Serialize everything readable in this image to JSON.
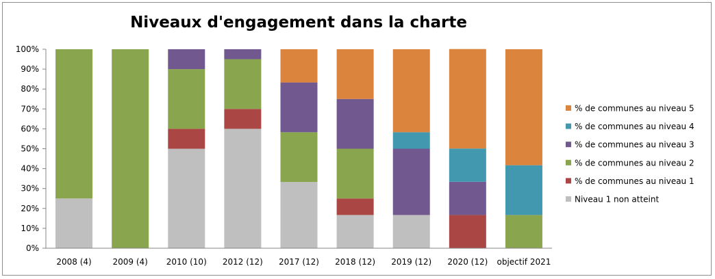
{
  "chart_data": {
    "type": "bar",
    "stacked": true,
    "title": "Niveaux d'engagement dans la charte",
    "categories": [
      "2008 (4)",
      "2009 (4)",
      "2010 (10)",
      "2012 (12)",
      "2017 (12)",
      "2018 (12)",
      "2019 (12)",
      "2020 (12)",
      "objectif 2021"
    ],
    "series": [
      {
        "name": "Niveau 1 non atteint",
        "color": "#bfbfbf",
        "values": [
          25,
          0,
          50,
          60,
          33.3,
          16.7,
          16.7,
          0,
          0
        ]
      },
      {
        "name": "% de communes au niveau 1",
        "color": "#aa4643",
        "values": [
          0,
          0,
          10,
          10,
          0,
          8.3,
          0,
          16.7,
          0
        ]
      },
      {
        "name": "% de communes au niveau 2",
        "color": "#89a54e",
        "values": [
          75,
          100,
          30,
          25,
          25,
          25,
          0,
          0,
          16.7
        ]
      },
      {
        "name": "% de communes au niveau 3",
        "color": "#71588f",
        "values": [
          0,
          0,
          10,
          5,
          25,
          25,
          33.3,
          16.7,
          0
        ]
      },
      {
        "name": "% de communes au niveau 4",
        "color": "#4198af",
        "values": [
          0,
          0,
          0,
          0,
          0,
          0,
          8.3,
          16.7,
          25
        ]
      },
      {
        "name": "% de communes au niveau 5",
        "color": "#db843d",
        "values": [
          0,
          0,
          0,
          0,
          16.7,
          25,
          41.7,
          50,
          58.3
        ]
      }
    ],
    "yticks": [
      "0%",
      "10%",
      "20%",
      "30%",
      "40%",
      "50%",
      "60%",
      "70%",
      "80%",
      "90%",
      "100%"
    ],
    "ylim": [
      0,
      100
    ],
    "grid": false,
    "legend_position": "right"
  }
}
